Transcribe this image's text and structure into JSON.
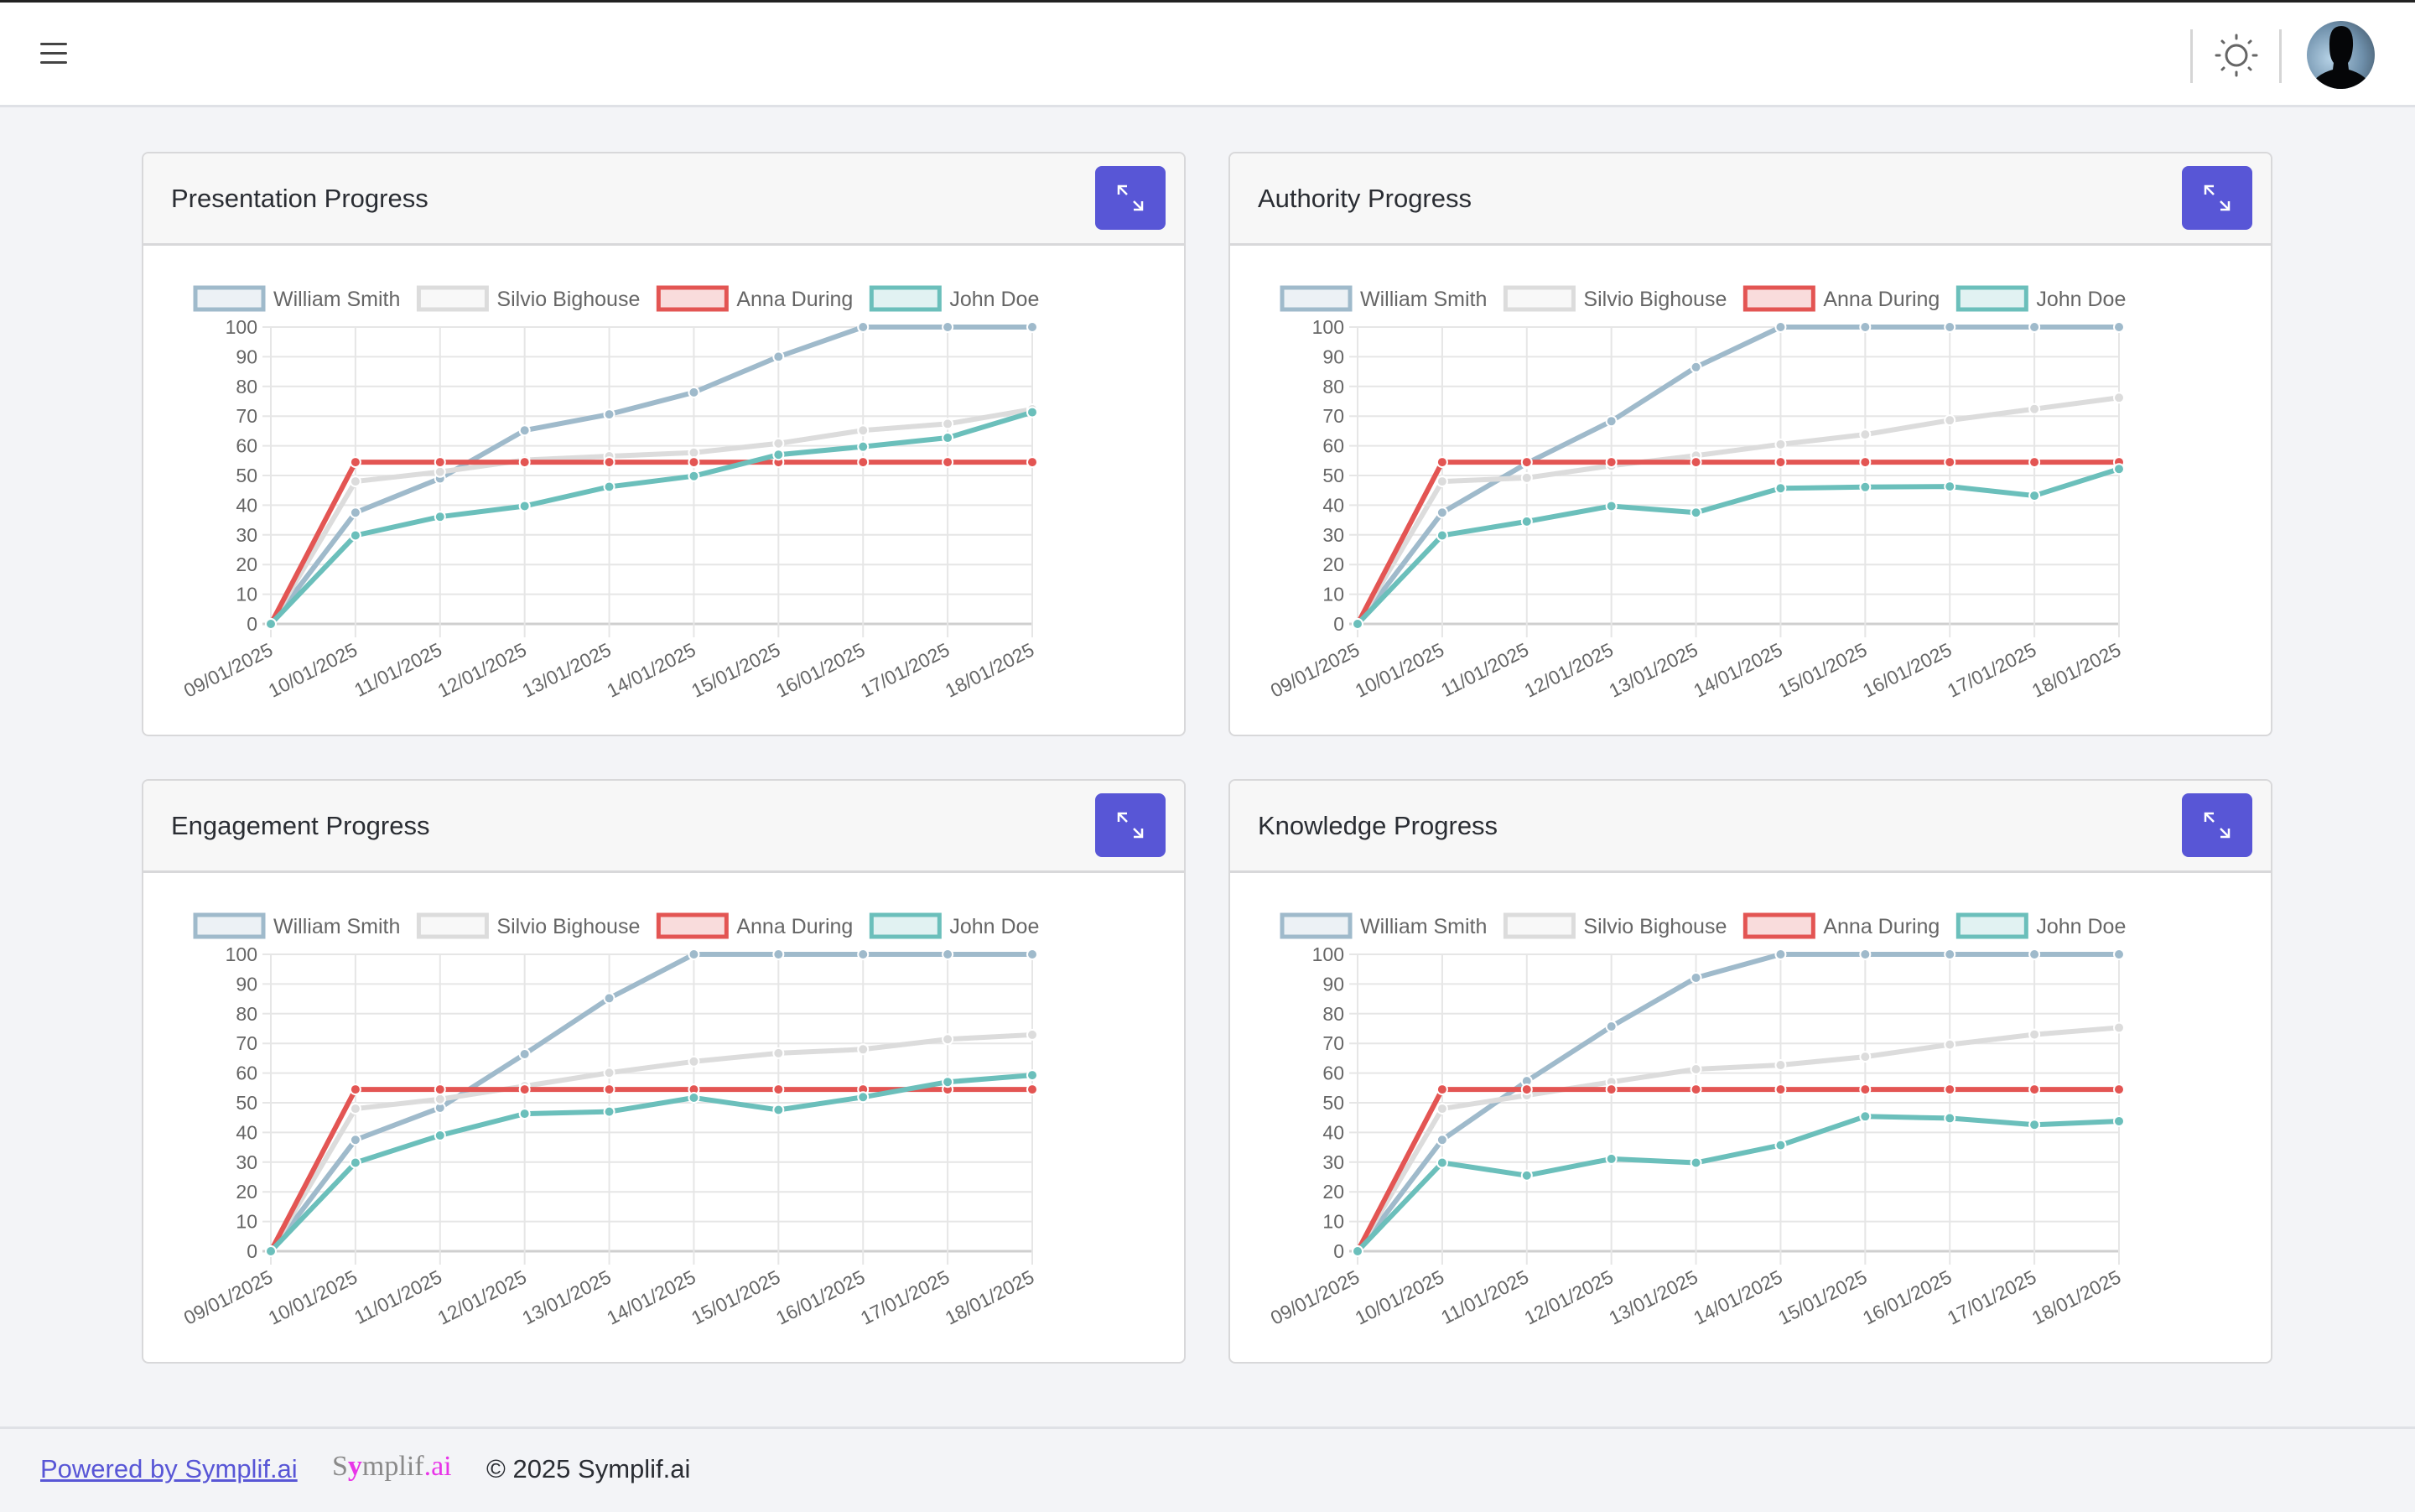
{
  "header": {
    "menu_icon": "hamburger-icon",
    "theme_icon": "sun-icon",
    "avatar_icon": "user-avatar"
  },
  "legend_colors": {
    "William Smith": {
      "line": "#9fbacb",
      "fill": "#ecf1f5"
    },
    "Silvio Bighouse": {
      "line": "#dcdcdc",
      "fill": "#f8f8f8"
    },
    "Anna During": {
      "line": "#e35553",
      "fill": "#f9dcdc"
    },
    "John Doe": {
      "line": "#6bbfbb",
      "fill": "#e1f2f2"
    }
  },
  "accent_color": "#5856d6",
  "cards": [
    {
      "title": "Presentation Progress",
      "expand_icon": "expand-icon"
    },
    {
      "title": "Authority Progress",
      "expand_icon": "expand-icon"
    },
    {
      "title": "Engagement Progress",
      "expand_icon": "expand-icon"
    },
    {
      "title": "Knowledge Progress",
      "expand_icon": "expand-icon"
    }
  ],
  "chart_data": [
    {
      "type": "line",
      "categories": [
        "09/01/2025",
        "10/01/2025",
        "11/01/2025",
        "12/01/2025",
        "13/01/2025",
        "14/01/2025",
        "15/01/2025",
        "16/01/2025",
        "17/01/2025",
        "18/01/2025"
      ],
      "ylim": [
        0,
        100
      ],
      "yticks": [
        0,
        10,
        20,
        30,
        40,
        50,
        60,
        70,
        80,
        90,
        100
      ],
      "grid": true,
      "legend": "top",
      "series": [
        {
          "name": "William Smith",
          "values": [
            0,
            37.5,
            49,
            65.2,
            70.6,
            78,
            90,
            100,
            100,
            100
          ]
        },
        {
          "name": "Silvio Bighouse",
          "values": [
            0,
            48,
            51.2,
            55.2,
            56.5,
            57.7,
            60.8,
            65.2,
            67.4,
            72.3
          ]
        },
        {
          "name": "Anna During",
          "values": [
            0,
            54.5,
            54.5,
            54.5,
            54.5,
            54.5,
            54.5,
            54.5,
            54.5,
            54.5
          ]
        },
        {
          "name": "John Doe",
          "values": [
            0,
            29.8,
            36.1,
            39.7,
            46.2,
            49.8,
            57,
            59.7,
            62.7,
            71.3
          ]
        }
      ]
    },
    {
      "type": "line",
      "categories": [
        "09/01/2025",
        "10/01/2025",
        "11/01/2025",
        "12/01/2025",
        "13/01/2025",
        "14/01/2025",
        "15/01/2025",
        "16/01/2025",
        "17/01/2025",
        "18/01/2025"
      ],
      "ylim": [
        0,
        100
      ],
      "yticks": [
        0,
        10,
        20,
        30,
        40,
        50,
        60,
        70,
        80,
        90,
        100
      ],
      "grid": true,
      "legend": "top",
      "series": [
        {
          "name": "William Smith",
          "values": [
            0,
            37.5,
            54.1,
            68.3,
            86.5,
            100,
            100,
            100,
            100,
            100
          ]
        },
        {
          "name": "Silvio Bighouse",
          "values": [
            0,
            48,
            49.2,
            53.3,
            56.7,
            60.5,
            63.8,
            68.6,
            72.4,
            76.2
          ]
        },
        {
          "name": "Anna During",
          "values": [
            0,
            54.5,
            54.5,
            54.5,
            54.5,
            54.5,
            54.5,
            54.5,
            54.5,
            54.5
          ]
        },
        {
          "name": "John Doe",
          "values": [
            0,
            29.8,
            34.5,
            39.7,
            37.5,
            45.7,
            46.1,
            46.3,
            43.2,
            52.2
          ]
        }
      ]
    },
    {
      "type": "line",
      "categories": [
        "09/01/2025",
        "10/01/2025",
        "11/01/2025",
        "12/01/2025",
        "13/01/2025",
        "14/01/2025",
        "15/01/2025",
        "16/01/2025",
        "17/01/2025",
        "18/01/2025"
      ],
      "ylim": [
        0,
        100
      ],
      "yticks": [
        0,
        10,
        20,
        30,
        40,
        50,
        60,
        70,
        80,
        90,
        100
      ],
      "grid": true,
      "legend": "top",
      "series": [
        {
          "name": "William Smith",
          "values": [
            0,
            37.5,
            48.3,
            66.4,
            85.2,
            100,
            100,
            100,
            100,
            100
          ]
        },
        {
          "name": "Silvio Bighouse",
          "values": [
            0,
            48,
            51.2,
            55.6,
            60.1,
            63.9,
            66.7,
            68,
            71.4,
            72.9
          ]
        },
        {
          "name": "Anna During",
          "values": [
            0,
            54.5,
            54.5,
            54.5,
            54.5,
            54.5,
            54.5,
            54.5,
            54.5,
            54.5
          ]
        },
        {
          "name": "John Doe",
          "values": [
            0,
            29.8,
            39,
            46.3,
            47,
            51.7,
            47.6,
            51.9,
            57,
            59.3
          ]
        }
      ]
    },
    {
      "type": "line",
      "categories": [
        "09/01/2025",
        "10/01/2025",
        "11/01/2025",
        "12/01/2025",
        "13/01/2025",
        "14/01/2025",
        "15/01/2025",
        "16/01/2025",
        "17/01/2025",
        "18/01/2025"
      ],
      "ylim": [
        0,
        100
      ],
      "yticks": [
        0,
        10,
        20,
        30,
        40,
        50,
        60,
        70,
        80,
        90,
        100
      ],
      "grid": true,
      "legend": "top",
      "series": [
        {
          "name": "William Smith",
          "values": [
            0,
            37.5,
            57.3,
            75.7,
            92.1,
            100,
            100,
            100,
            100,
            100
          ]
        },
        {
          "name": "Silvio Bighouse",
          "values": [
            0,
            48,
            52.5,
            57,
            61.3,
            62.7,
            65.5,
            69.6,
            73,
            75.3
          ]
        },
        {
          "name": "Anna During",
          "values": [
            0,
            54.5,
            54.5,
            54.5,
            54.5,
            54.5,
            54.5,
            54.5,
            54.5,
            54.5
          ]
        },
        {
          "name": "John Doe",
          "values": [
            0,
            29.8,
            25.5,
            31.1,
            29.8,
            35.7,
            45.4,
            44.8,
            42.6,
            43.8
          ]
        }
      ]
    }
  ],
  "footer": {
    "powered_link": "Powered by Symplif.ai",
    "logo_text": "Symplif.ai",
    "copyright": "© 2025 Symplif.ai"
  }
}
